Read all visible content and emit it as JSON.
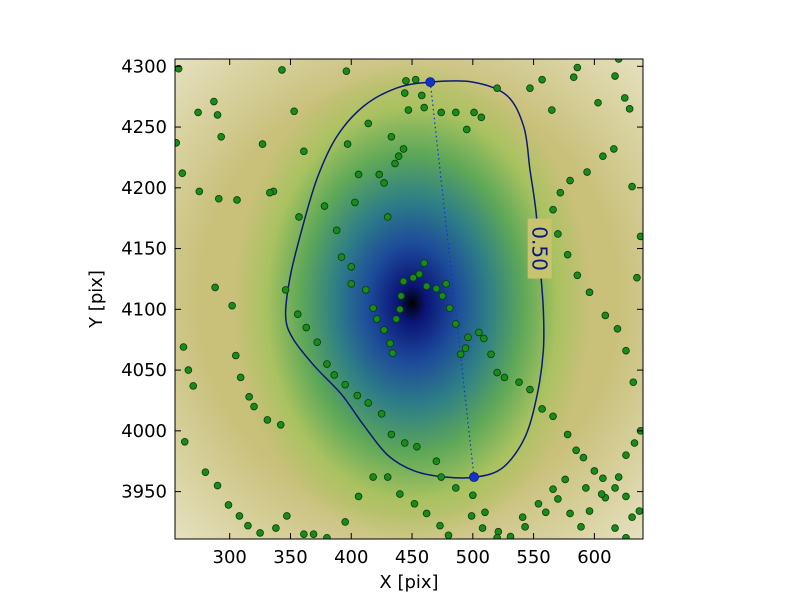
{
  "chart_data": {
    "type": "scatter",
    "xlabel": "X [pix]",
    "ylabel": "Y [pix]",
    "xlim": [
      255,
      640
    ],
    "ylim": [
      3911,
      4306
    ],
    "x_ticks": [
      300,
      350,
      400,
      450,
      500,
      550,
      600
    ],
    "y_ticks": [
      3950,
      4000,
      4050,
      4100,
      4150,
      4200,
      4250,
      4300
    ],
    "grid": false,
    "density_center": [
      450,
      4105
    ],
    "colormap": [
      "#ffffff",
      "#e2c3a8",
      "#c9c07a",
      "#a9c260",
      "#5ea858",
      "#2f7f86",
      "#1d4c9a",
      "#0b1578",
      "#000000"
    ],
    "point_color": "#188c18",
    "contour_color": "#0a1a78",
    "contour": {
      "level_label": "0.50",
      "points": [
        [
          352,
          4076
        ],
        [
          370,
          4053
        ],
        [
          392,
          4030
        ],
        [
          410,
          4005
        ],
        [
          430,
          3980
        ],
        [
          452,
          3967
        ],
        [
          477,
          3962
        ],
        [
          503,
          3962
        ],
        [
          525,
          3970
        ],
        [
          543,
          3995
        ],
        [
          553,
          4030
        ],
        [
          558,
          4066
        ],
        [
          558,
          4100
        ],
        [
          555,
          4140
        ],
        [
          552,
          4180
        ],
        [
          547,
          4215
        ],
        [
          542,
          4250
        ],
        [
          528,
          4276
        ],
        [
          500,
          4287
        ],
        [
          465,
          4287
        ],
        [
          437,
          4282
        ],
        [
          410,
          4267
        ],
        [
          388,
          4242
        ],
        [
          372,
          4208
        ],
        [
          360,
          4168
        ],
        [
          350,
          4128
        ],
        [
          346,
          4095
        ]
      ]
    },
    "major_axis": {
      "points": [
        [
          465,
          4287
        ],
        [
          501,
          3962
        ]
      ],
      "color": "#1133cc"
    },
    "points": [
      [
        258,
        4298
      ],
      [
        274,
        4262
      ],
      [
        287,
        4271
      ],
      [
        290,
        4260
      ],
      [
        293,
        4242
      ],
      [
        327,
        4236
      ],
      [
        336,
        4197
      ],
      [
        343,
        4297
      ],
      [
        353,
        4263
      ],
      [
        361,
        4230
      ],
      [
        396,
        4296
      ],
      [
        397,
        4236
      ],
      [
        403,
        4188
      ],
      [
        406,
        4211
      ],
      [
        414,
        4253
      ],
      [
        423,
        4211
      ],
      [
        427,
        4204
      ],
      [
        430,
        4176
      ],
      [
        433,
        4242
      ],
      [
        436,
        4220
      ],
      [
        439,
        4226
      ],
      [
        443,
        4232
      ],
      [
        444,
        4278
      ],
      [
        445,
        4288
      ],
      [
        447,
        4264
      ],
      [
        453,
        4289
      ],
      [
        458,
        4276
      ],
      [
        460,
        4266
      ],
      [
        474,
        4262
      ],
      [
        486,
        4262
      ],
      [
        495,
        4248
      ],
      [
        501,
        4262
      ],
      [
        507,
        4258
      ],
      [
        520,
        4282
      ],
      [
        547,
        4282
      ],
      [
        557,
        4289
      ],
      [
        565,
        4264
      ],
      [
        583,
        4291
      ],
      [
        586,
        4299
      ],
      [
        603,
        4270
      ],
      [
        617,
        4292
      ],
      [
        620,
        4306
      ],
      [
        625,
        4274
      ],
      [
        629,
        4265
      ],
      [
        256,
        4237
      ],
      [
        261,
        4212
      ],
      [
        275,
        4197
      ],
      [
        291,
        4191
      ],
      [
        306,
        4190
      ],
      [
        333,
        4196
      ],
      [
        357,
        4176
      ],
      [
        378,
        4185
      ],
      [
        388,
        4165
      ],
      [
        392,
        4143
      ],
      [
        400,
        4135
      ],
      [
        400,
        4121
      ],
      [
        412,
        4116
      ],
      [
        418,
        4101
      ],
      [
        421,
        4092
      ],
      [
        427,
        4083
      ],
      [
        432,
        4072
      ],
      [
        434,
        4064
      ],
      [
        437,
        4092
      ],
      [
        440,
        4100
      ],
      [
        441,
        4111
      ],
      [
        443,
        4123
      ],
      [
        451,
        4126
      ],
      [
        456,
        4129
      ],
      [
        460,
        4138
      ],
      [
        462,
        4119
      ],
      [
        470,
        4117
      ],
      [
        475,
        4111
      ],
      [
        478,
        4121
      ],
      [
        481,
        4101
      ],
      [
        486,
        4088
      ],
      [
        490,
        4063
      ],
      [
        494,
        4068
      ],
      [
        496,
        4077
      ],
      [
        505,
        4081
      ],
      [
        509,
        4076
      ],
      [
        515,
        4063
      ],
      [
        520,
        4048
      ],
      [
        526,
        4044
      ],
      [
        538,
        4040
      ],
      [
        547,
        4034
      ],
      [
        557,
        4018
      ],
      [
        566,
        4012
      ],
      [
        578,
        3997
      ],
      [
        585,
        3984
      ],
      [
        591,
        3978
      ],
      [
        600,
        3967
      ],
      [
        607,
        3961
      ],
      [
        617,
        3953
      ],
      [
        626,
        3946
      ],
      [
        631,
        3929
      ],
      [
        637,
        3934
      ],
      [
        262,
        4069
      ],
      [
        266,
        4050
      ],
      [
        270,
        4037
      ],
      [
        288,
        4118
      ],
      [
        302,
        4103
      ],
      [
        305,
        4062
      ],
      [
        309,
        4044
      ],
      [
        316,
        4028
      ],
      [
        320,
        4020
      ],
      [
        331,
        4009
      ],
      [
        342,
        4005
      ],
      [
        346,
        4116
      ],
      [
        356,
        4096
      ],
      [
        363,
        4085
      ],
      [
        372,
        4073
      ],
      [
        380,
        4055
      ],
      [
        386,
        4046
      ],
      [
        395,
        4038
      ],
      [
        405,
        4029
      ],
      [
        414,
        4023
      ],
      [
        425,
        4014
      ],
      [
        433,
        3997
      ],
      [
        444,
        3990
      ],
      [
        454,
        3987
      ],
      [
        470,
        3975
      ],
      [
        474,
        3962
      ],
      [
        486,
        3953
      ],
      [
        500,
        3947
      ],
      [
        510,
        3933
      ],
      [
        521,
        3917
      ],
      [
        531,
        3913
      ],
      [
        541,
        3929
      ],
      [
        554,
        3940
      ],
      [
        566,
        3952
      ],
      [
        576,
        3960
      ],
      [
        593,
        3953
      ],
      [
        609,
        3945
      ],
      [
        617,
        3920
      ],
      [
        626,
        3912
      ],
      [
        263,
        3991
      ],
      [
        280,
        3966
      ],
      [
        290,
        3955
      ],
      [
        299,
        3939
      ],
      [
        308,
        3930
      ],
      [
        315,
        3922
      ],
      [
        325,
        3916
      ],
      [
        338,
        3920
      ],
      [
        347,
        3930
      ],
      [
        361,
        3915
      ],
      [
        369,
        3915
      ],
      [
        380,
        3912
      ],
      [
        395,
        3925
      ],
      [
        406,
        3946
      ],
      [
        418,
        3962
      ],
      [
        430,
        3962
      ],
      [
        440,
        3948
      ],
      [
        452,
        3940
      ],
      [
        462,
        3932
      ],
      [
        473,
        3922
      ],
      [
        480,
        3914
      ],
      [
        499,
        3930
      ],
      [
        508,
        3920
      ],
      [
        520,
        3912
      ],
      [
        543,
        3921
      ],
      [
        560,
        3933
      ],
      [
        570,
        3944
      ],
      [
        580,
        3932
      ],
      [
        589,
        3921
      ],
      [
        596,
        3934
      ],
      [
        606,
        3948
      ],
      [
        620,
        3962
      ],
      [
        626,
        3980
      ],
      [
        633,
        3990
      ],
      [
        638,
        4000
      ],
      [
        632,
        4040
      ],
      [
        626,
        4066
      ],
      [
        619,
        4084
      ],
      [
        609,
        4095
      ],
      [
        596,
        4114
      ],
      [
        586,
        4128
      ],
      [
        578,
        4145
      ],
      [
        570,
        4162
      ],
      [
        566,
        4182
      ],
      [
        572,
        4196
      ],
      [
        580,
        4206
      ],
      [
        594,
        4213
      ],
      [
        607,
        4226
      ],
      [
        616,
        4232
      ],
      [
        631,
        4201
      ],
      [
        638,
        4160
      ],
      [
        635,
        4126
      ]
    ]
  }
}
